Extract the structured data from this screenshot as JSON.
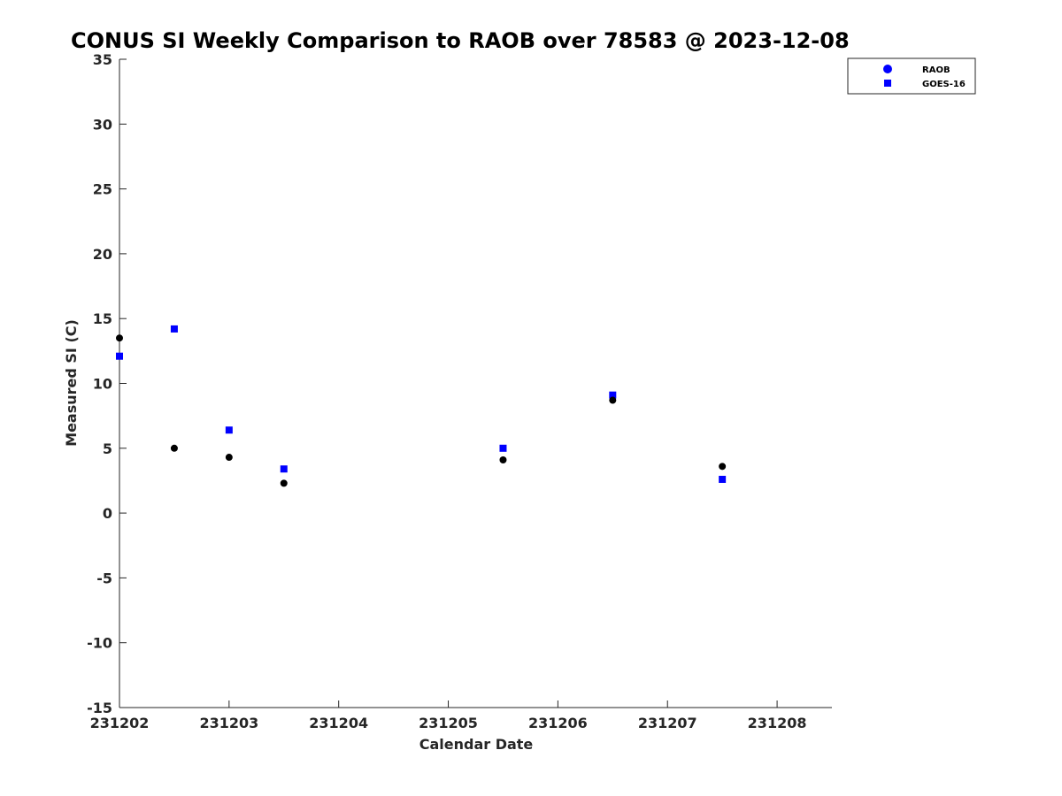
{
  "chart_data": {
    "type": "scatter",
    "title": "CONUS SI Weekly Comparison to RAOB over 78583 @ 2023-12-08",
    "xlabel": "Calendar Date",
    "ylabel": "Measured SI (C)",
    "xlim": [
      "2023-12-02",
      "2023-12-08 12:00"
    ],
    "ylim": [
      -15,
      35
    ],
    "x_ticks": [
      "231202",
      "231203",
      "231204",
      "231205",
      "231206",
      "231207",
      "231208"
    ],
    "y_ticks": [
      "35",
      "30",
      "25",
      "20",
      "15",
      "10",
      "5",
      "0",
      "-5",
      "-10",
      "-15"
    ],
    "grid": false,
    "legend_position": "top-right",
    "series": [
      {
        "name": "RAOB",
        "marker": "circle",
        "color": "#000000",
        "legend_color": "#0000ff",
        "x": [
          "2023-12-02 00:00",
          "2023-12-02 12:00",
          "2023-12-03 00:00",
          "2023-12-03 12:00",
          "2023-12-05 12:00",
          "2023-12-06 12:00",
          "2023-12-07 12:00"
        ],
        "y": [
          13.5,
          5.0,
          4.3,
          2.3,
          4.1,
          8.7,
          3.6
        ]
      },
      {
        "name": "GOES-16",
        "marker": "square",
        "color": "#0000ff",
        "legend_color": "#0000ff",
        "x": [
          "2023-12-02 00:00",
          "2023-12-02 12:00",
          "2023-12-03 00:00",
          "2023-12-03 12:00",
          "2023-12-05 12:00",
          "2023-12-06 12:00",
          "2023-12-07 12:00"
        ],
        "y": [
          12.1,
          14.2,
          6.4,
          3.4,
          5.0,
          9.1,
          2.6
        ]
      }
    ]
  }
}
